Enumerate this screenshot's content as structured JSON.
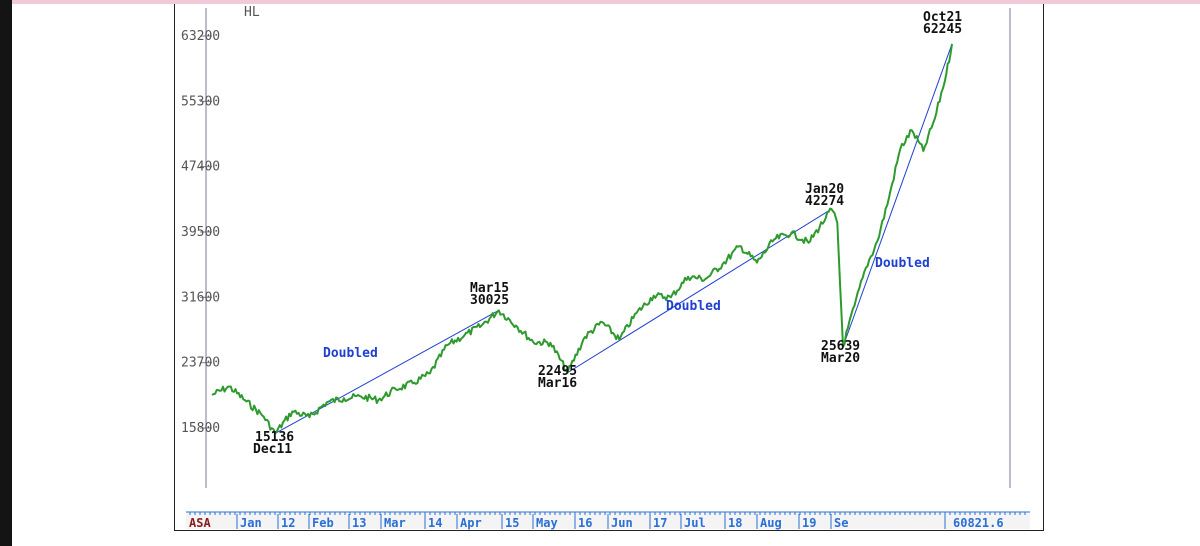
{
  "chart_data": {
    "type": "line",
    "title": "",
    "top_left_label": "HL",
    "y_ticks": [
      "63200",
      "55300",
      "47400",
      "39500",
      "31600",
      "23700",
      "15800"
    ],
    "y_tick_values": [
      63200,
      55300,
      47400,
      39500,
      31600,
      23700,
      15800
    ],
    "ylim": [
      12000,
      64500
    ],
    "x_bottom_labels": [
      "ASA",
      "Jan",
      "12",
      "Feb",
      "13",
      "Mar",
      "14",
      "Apr",
      "15",
      "May",
      "16",
      "Jun",
      "17",
      "Jul",
      "18",
      "Aug",
      "19",
      "Se"
    ],
    "last_value": "60821.6",
    "series": [
      {
        "color": "#2e9a2e",
        "points": [
          [
            "2011-01",
            19800
          ],
          [
            "2011-04",
            20800
          ],
          [
            "2011-07",
            19000
          ],
          [
            "2011-10",
            17200
          ],
          [
            "2011-12",
            15136
          ],
          [
            "2012-03",
            17800
          ],
          [
            "2012-06",
            17100
          ],
          [
            "2012-09",
            18900
          ],
          [
            "2012-12",
            19400
          ],
          [
            "2013-03",
            19600
          ],
          [
            "2013-06",
            19200
          ],
          [
            "2013-09",
            20500
          ],
          [
            "2013-12",
            21200
          ],
          [
            "2014-03",
            22400
          ],
          [
            "2014-06",
            25800
          ],
          [
            "2014-09",
            27000
          ],
          [
            "2014-12",
            28200
          ],
          [
            "2015-03",
            30025
          ],
          [
            "2015-06",
            28200
          ],
          [
            "2015-09",
            26200
          ],
          [
            "2015-12",
            26100
          ],
          [
            "2016-03",
            22495
          ],
          [
            "2016-06",
            26800
          ],
          [
            "2016-09",
            28600
          ],
          [
            "2016-12",
            26500
          ],
          [
            "2017-03",
            29700
          ],
          [
            "2017-06",
            31800
          ],
          [
            "2017-09",
            31600
          ],
          [
            "2017-12",
            34100
          ],
          [
            "2018-03",
            33800
          ],
          [
            "2018-06",
            35600
          ],
          [
            "2018-09",
            37800
          ],
          [
            "2018-12",
            35800
          ],
          [
            "2019-03",
            38600
          ],
          [
            "2019-06",
            39400
          ],
          [
            "2019-09",
            38200
          ],
          [
            "2019-12",
            41200
          ],
          [
            "2020-01",
            42274
          ],
          [
            "2020-02",
            40600
          ],
          [
            "2020-03",
            25639
          ],
          [
            "2020-05",
            30600
          ],
          [
            "2020-07",
            35200
          ],
          [
            "2020-09",
            38400
          ],
          [
            "2020-11",
            43600
          ],
          [
            "2021-01",
            49600
          ],
          [
            "2021-03",
            51800
          ],
          [
            "2021-05",
            49300
          ],
          [
            "2021-07",
            53200
          ],
          [
            "2021-09",
            58600
          ],
          [
            "2021-10",
            62245
          ]
        ]
      }
    ],
    "trendlines": [
      {
        "from": [
          "2011-12",
          15136
        ],
        "to": [
          "2015-03",
          30025
        ],
        "label": "Doubled"
      },
      {
        "from": [
          "2016-03",
          22495
        ],
        "to": [
          "2020-01",
          42274
        ],
        "label": "Doubled"
      },
      {
        "from": [
          "2020-03",
          25639
        ],
        "to": [
          "2021-10",
          62245
        ],
        "label": "Doubled"
      }
    ],
    "annotations": [
      {
        "point": "15136",
        "date": "Dec11"
      },
      {
        "point": "30025",
        "date": "Mar15"
      },
      {
        "point": "22495",
        "date": "Mar16"
      },
      {
        "point": "42274",
        "date": "Jan20"
      },
      {
        "point": "25639",
        "date": "Mar20"
      },
      {
        "point": "62245",
        "date": "Oct21"
      }
    ]
  }
}
